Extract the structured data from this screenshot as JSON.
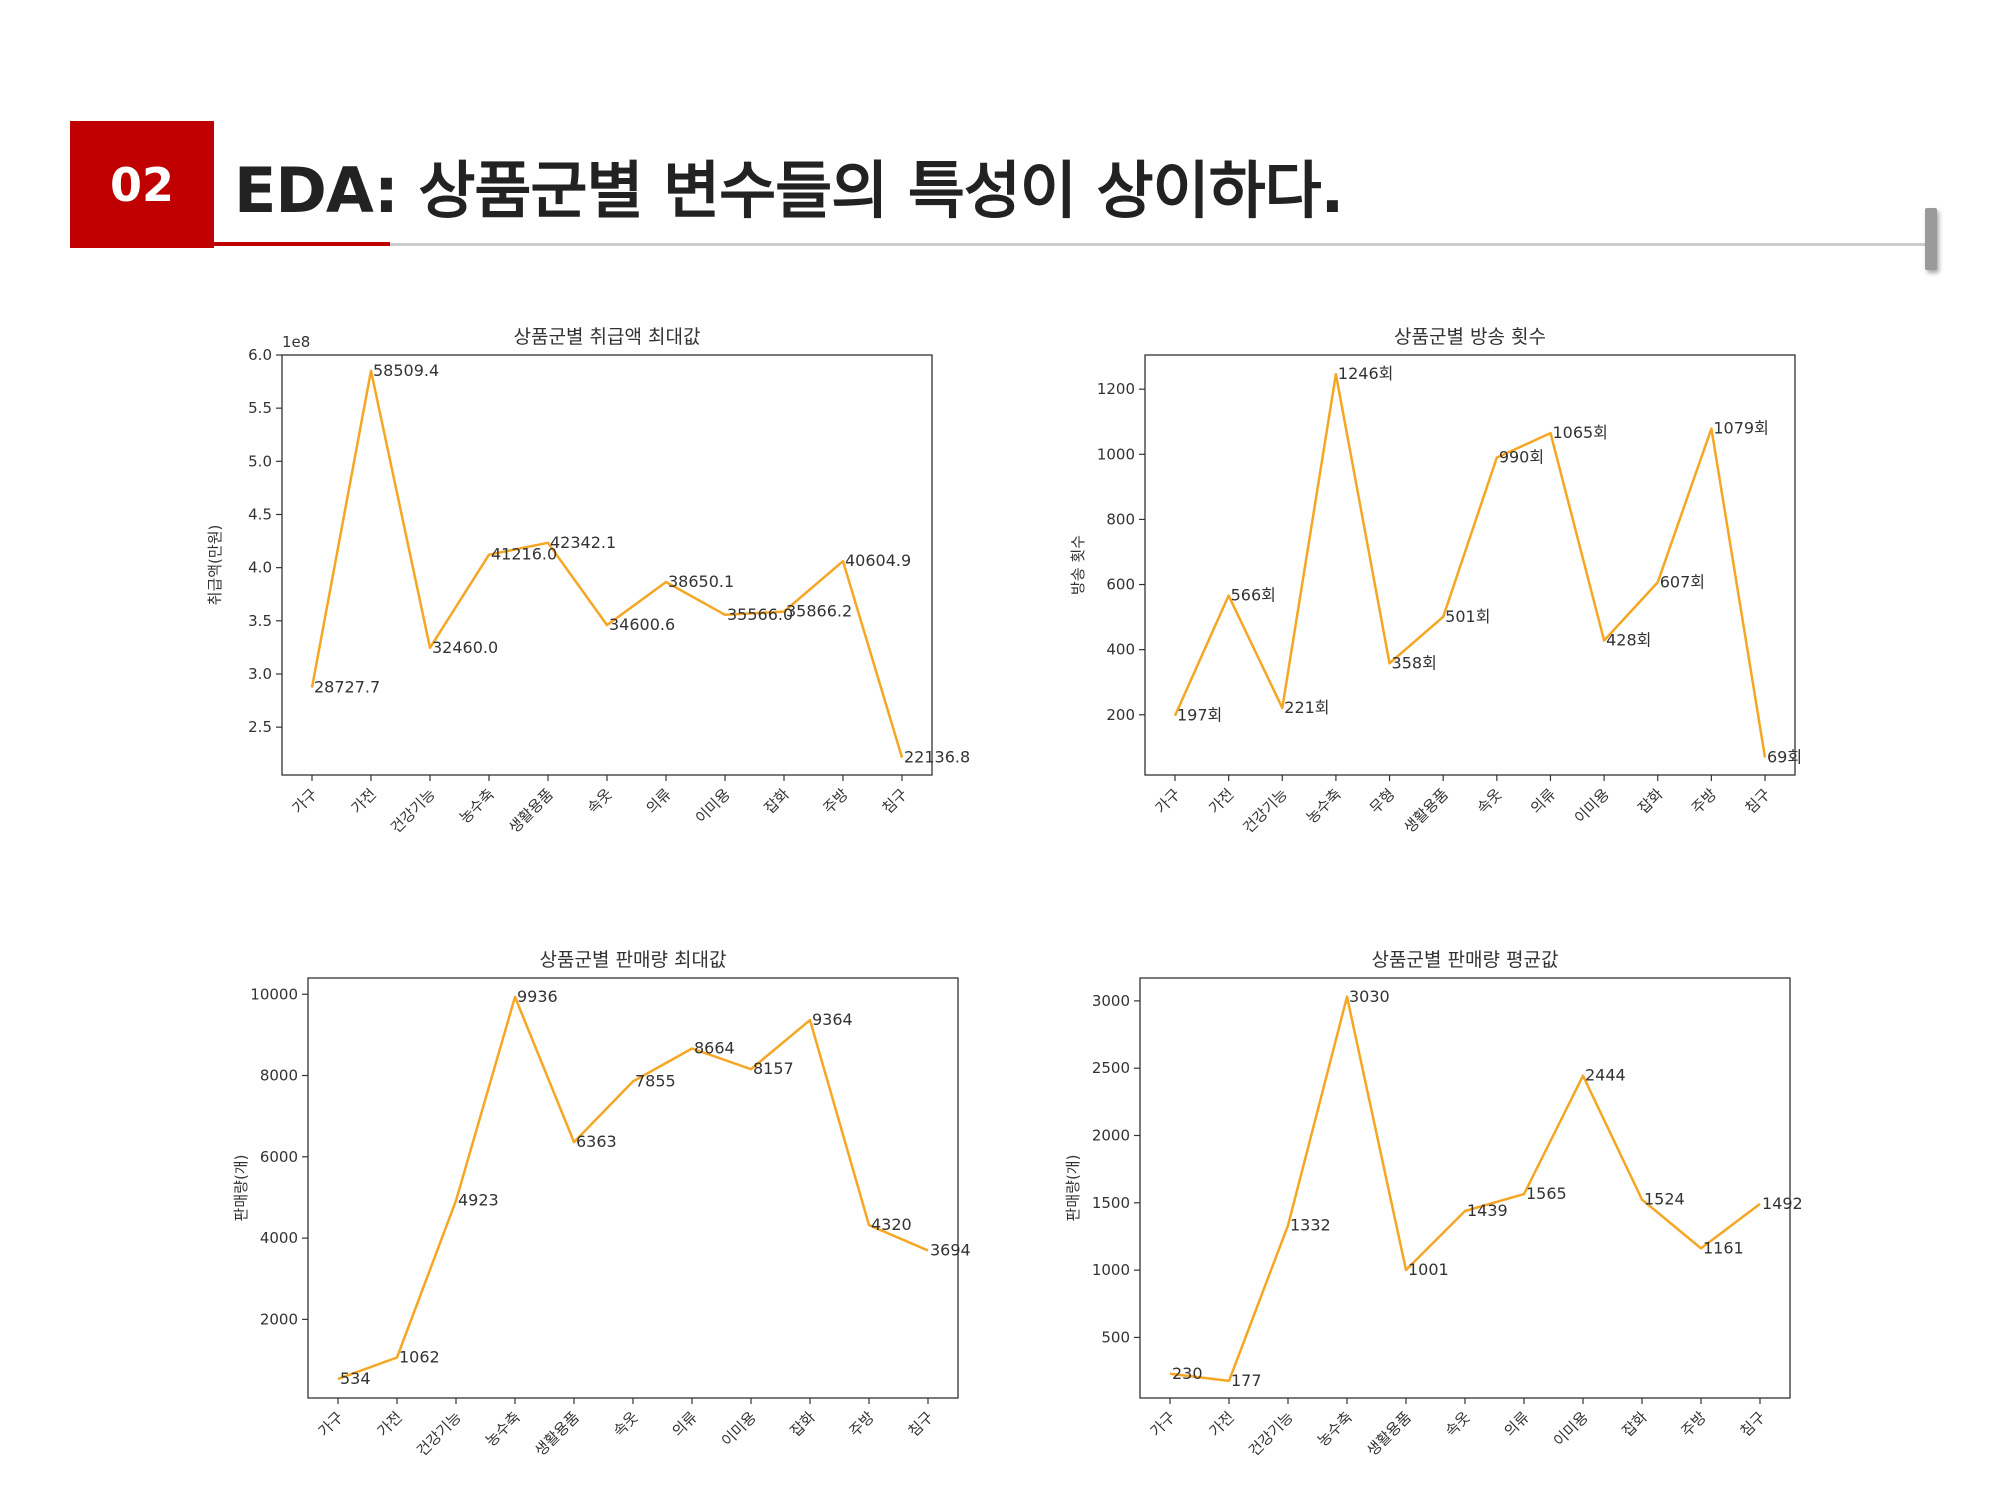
{
  "header": {
    "badge": "02",
    "title": "EDA: 상품군별 변수들의 특성이 상이하다."
  },
  "colors": {
    "accent": "#c00000",
    "line": "#f5a623"
  },
  "chart_data": [
    {
      "type": "line",
      "title": "상품군별 취급액 최대값",
      "ylabel": "취급액(만원)",
      "offset_label": "1e8",
      "categories": [
        "가구",
        "가전",
        "건강기능",
        "농수축",
        "생활용품",
        "속옷",
        "의류",
        "이미용",
        "잡화",
        "주방",
        "침구"
      ],
      "values": [
        2.87277,
        5.85094,
        3.246,
        4.1216,
        4.23421,
        3.46006,
        3.86501,
        3.5566,
        3.58662,
        4.06049,
        2.21368
      ],
      "labels": [
        "28727.7",
        "58509.4",
        "32460.0",
        "41216.0",
        "42342.1",
        "34600.6",
        "38650.1",
        "35566.0",
        "35866.2",
        "40604.9",
        "22136.8"
      ],
      "yticks": [
        2.5,
        3.0,
        3.5,
        4.0,
        4.5,
        5.0,
        5.5,
        6.0
      ],
      "ytick_labels": [
        "2.5",
        "3.0",
        "3.5",
        "4.0",
        "4.5",
        "5.0",
        "5.5",
        "6.0"
      ],
      "ylim": [
        2.05,
        6.0
      ]
    },
    {
      "type": "line",
      "title": "상품군별 방송 횟수",
      "ylabel": "방송 횟수",
      "categories": [
        "가구",
        "가전",
        "건강기능",
        "농수축",
        "무형",
        "생활용품",
        "속옷",
        "의류",
        "이미용",
        "잡화",
        "주방",
        "침구"
      ],
      "values": [
        197,
        566,
        221,
        1246,
        358,
        501,
        990,
        1065,
        428,
        607,
        1079,
        69
      ],
      "labels": [
        "197회",
        "566회",
        "221회",
        "1246회",
        "358회",
        "501회",
        "990회",
        "1065회",
        "428회",
        "607회",
        "1079회",
        "69회"
      ],
      "yticks": [
        200,
        400,
        600,
        800,
        1000,
        1200
      ],
      "ytick_labels": [
        "200",
        "400",
        "600",
        "800",
        "1000",
        "1200"
      ],
      "ylim": [
        15,
        1305
      ]
    },
    {
      "type": "line",
      "title": "상품군별 판매량 최대값",
      "ylabel": "판매량(개)",
      "categories": [
        "가구",
        "가전",
        "건강기능",
        "농수축",
        "생활용품",
        "속옷",
        "의류",
        "이미용",
        "잡화",
        "주방",
        "침구"
      ],
      "values": [
        534,
        1062,
        4923,
        9936,
        6363,
        7855,
        8664,
        8157,
        9364,
        4320,
        3694
      ],
      "labels": [
        "534",
        "1062",
        "4923",
        "9936",
        "6363",
        "7855",
        "8664",
        "8157",
        "9364",
        "4320",
        "3694"
      ],
      "yticks": [
        2000,
        4000,
        6000,
        8000,
        10000
      ],
      "ytick_labels": [
        "2000",
        "4000",
        "6000",
        "8000",
        "10000"
      ],
      "ylim": [
        65,
        10400
      ]
    },
    {
      "type": "line",
      "title": "상품군별 판매량 평균값",
      "ylabel": "판매량(개)",
      "categories": [
        "가구",
        "가전",
        "건강기능",
        "농수축",
        "생활용품",
        "속옷",
        "의류",
        "이미용",
        "잡화",
        "주방",
        "침구"
      ],
      "values": [
        230,
        177,
        1332,
        3030,
        1001,
        1439,
        1565,
        2444,
        1524,
        1161,
        1492
      ],
      "labels": [
        "230",
        "177",
        "1332",
        "3030",
        "1001",
        "1439",
        "1565",
        "2444",
        "1524",
        "1161",
        "1492"
      ],
      "yticks": [
        500,
        1000,
        1500,
        2000,
        2500,
        3000
      ],
      "ytick_labels": [
        "500",
        "1000",
        "1500",
        "2000",
        "2500",
        "3000"
      ],
      "ylim": [
        50,
        3170
      ]
    }
  ]
}
